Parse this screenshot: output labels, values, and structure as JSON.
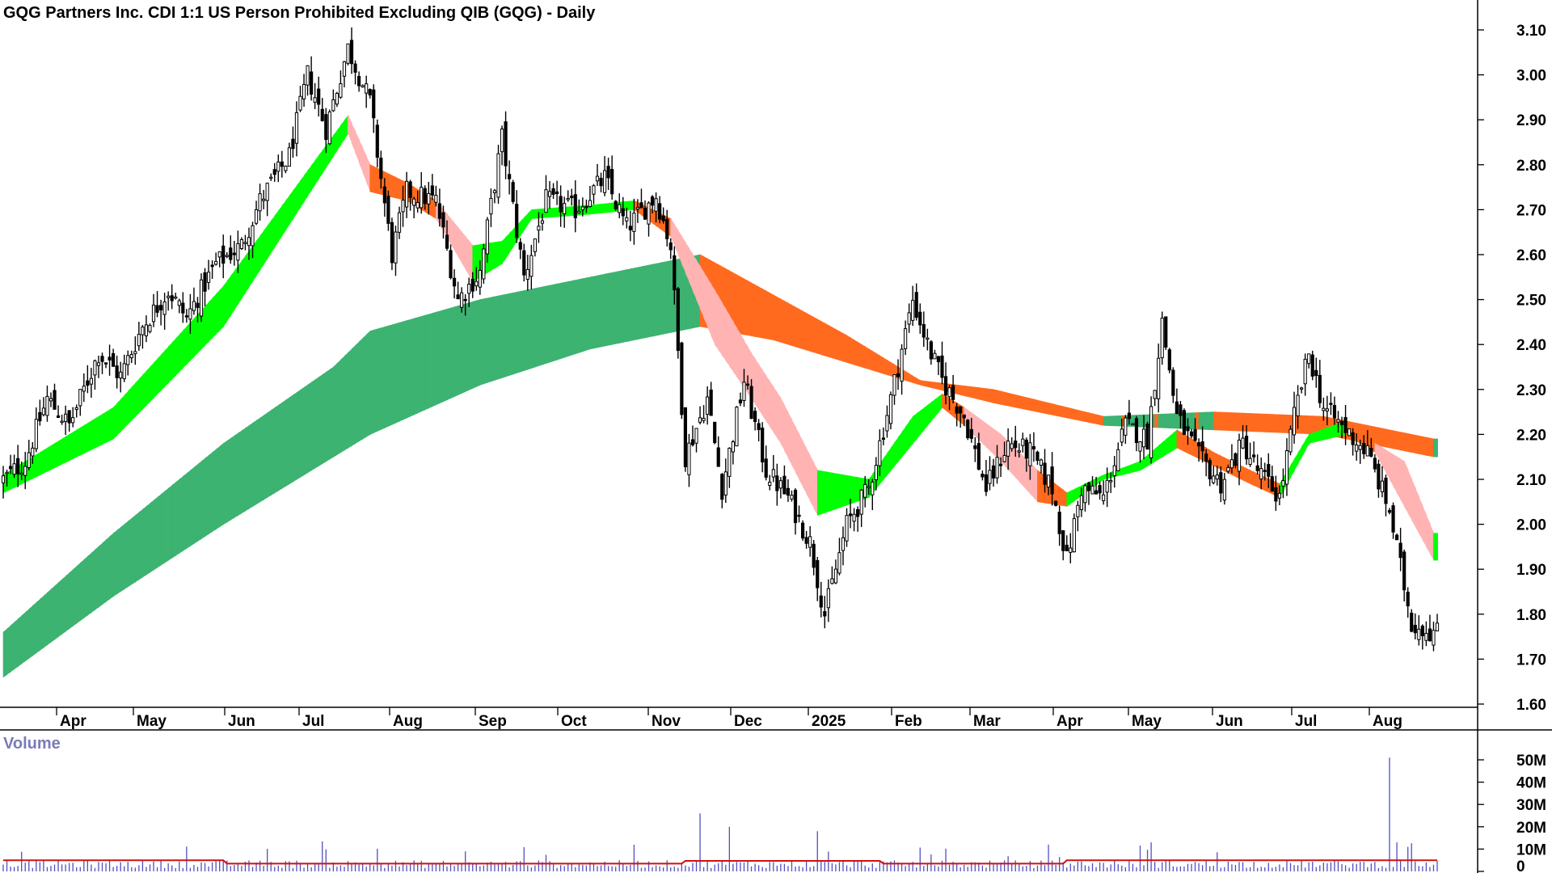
{
  "chart_data": {
    "type": "candlestick",
    "title": "GQG Partners Inc. CDI 1:1 US Person Prohibited Excluding QIB (GQG) - Daily",
    "y_ticks": [
      "3.10",
      "3.00",
      "2.90",
      "2.80",
      "2.70",
      "2.60",
      "2.50",
      "2.40",
      "2.30",
      "2.20",
      "2.10",
      "2.00",
      "1.90",
      "1.80",
      "1.70",
      "1.60"
    ],
    "ylim": [
      1.57,
      3.17
    ],
    "x_labels": [
      "Apr",
      "May",
      "Jun",
      "Jul",
      "Aug",
      "Sep",
      "Oct",
      "Nov",
      "Dec",
      "2025",
      "Feb",
      "Mar",
      "Apr",
      "May",
      "Jun",
      "Jul",
      "Aug"
    ],
    "price_anchors": [
      [
        0,
        2.1
      ],
      [
        6,
        2.14
      ],
      [
        12,
        2.28
      ],
      [
        18,
        2.22
      ],
      [
        26,
        2.38
      ],
      [
        32,
        2.33
      ],
      [
        38,
        2.44
      ],
      [
        45,
        2.52
      ],
      [
        50,
        2.46
      ],
      [
        58,
        2.58
      ],
      [
        65,
        2.62
      ],
      [
        70,
        2.72
      ],
      [
        78,
        2.82
      ],
      [
        83,
        3.0
      ],
      [
        88,
        2.88
      ],
      [
        94,
        3.06
      ],
      [
        100,
        2.94
      ],
      [
        106,
        2.6
      ],
      [
        110,
        2.74
      ],
      [
        118,
        2.72
      ],
      [
        124,
        2.5
      ],
      [
        130,
        2.56
      ],
      [
        136,
        2.86
      ],
      [
        142,
        2.55
      ],
      [
        148,
        2.72
      ],
      [
        156,
        2.7
      ],
      [
        164,
        2.77
      ],
      [
        170,
        2.66
      ],
      [
        178,
        2.73
      ],
      [
        182,
        2.62
      ],
      [
        186,
        2.15
      ],
      [
        192,
        2.28
      ],
      [
        196,
        2.08
      ],
      [
        202,
        2.32
      ],
      [
        208,
        2.12
      ],
      [
        214,
        2.06
      ],
      [
        220,
        1.96
      ],
      [
        224,
        1.8
      ],
      [
        230,
        2.0
      ],
      [
        236,
        2.08
      ],
      [
        242,
        2.28
      ],
      [
        248,
        2.5
      ],
      [
        252,
        2.4
      ],
      [
        256,
        2.32
      ],
      [
        262,
        2.24
      ],
      [
        268,
        2.08
      ],
      [
        274,
        2.18
      ],
      [
        280,
        2.16
      ],
      [
        286,
        2.08
      ],
      [
        290,
        1.92
      ],
      [
        294,
        2.08
      ],
      [
        300,
        2.06
      ],
      [
        306,
        2.22
      ],
      [
        312,
        2.19
      ],
      [
        316,
        2.45
      ],
      [
        320,
        2.24
      ],
      [
        326,
        2.15
      ],
      [
        332,
        2.09
      ],
      [
        338,
        2.18
      ],
      [
        342,
        2.12
      ],
      [
        348,
        2.06
      ],
      [
        352,
        2.24
      ],
      [
        356,
        2.38
      ],
      [
        360,
        2.26
      ],
      [
        366,
        2.21
      ],
      [
        372,
        2.16
      ],
      [
        378,
        2.03
      ],
      [
        384,
        1.78
      ],
      [
        390,
        1.76
      ]
    ],
    "ma_short_ribbon": {
      "upper": [
        [
          0,
          2.11
        ],
        [
          30,
          2.26
        ],
        [
          60,
          2.53
        ],
        [
          94,
          2.91
        ],
        [
          100,
          2.8
        ],
        [
          110,
          2.76
        ],
        [
          118,
          2.72
        ],
        [
          128,
          2.62
        ],
        [
          136,
          2.63
        ],
        [
          144,
          2.7
        ],
        [
          160,
          2.71
        ],
        [
          172,
          2.72
        ],
        [
          182,
          2.68
        ],
        [
          194,
          2.52
        ],
        [
          204,
          2.38
        ],
        [
          212,
          2.28
        ],
        [
          222,
          2.12
        ],
        [
          236,
          2.1
        ],
        [
          248,
          2.24
        ],
        [
          256,
          2.29
        ],
        [
          262,
          2.26
        ],
        [
          272,
          2.2
        ],
        [
          282,
          2.12
        ],
        [
          290,
          2.07
        ],
        [
          300,
          2.11
        ],
        [
          310,
          2.14
        ],
        [
          320,
          2.21
        ],
        [
          330,
          2.16
        ],
        [
          340,
          2.12
        ],
        [
          348,
          2.09
        ],
        [
          356,
          2.2
        ],
        [
          366,
          2.23
        ],
        [
          374,
          2.18
        ],
        [
          382,
          2.14
        ],
        [
          390,
          1.98
        ]
      ],
      "lower": [
        [
          0,
          2.07
        ],
        [
          30,
          2.19
        ],
        [
          60,
          2.44
        ],
        [
          94,
          2.87
        ],
        [
          100,
          2.74
        ],
        [
          110,
          2.72
        ],
        [
          118,
          2.68
        ],
        [
          128,
          2.54
        ],
        [
          136,
          2.58
        ],
        [
          144,
          2.68
        ],
        [
          160,
          2.69
        ],
        [
          172,
          2.7
        ],
        [
          182,
          2.64
        ],
        [
          194,
          2.4
        ],
        [
          204,
          2.28
        ],
        [
          212,
          2.18
        ],
        [
          222,
          2.02
        ],
        [
          236,
          2.06
        ],
        [
          248,
          2.18
        ],
        [
          256,
          2.26
        ],
        [
          262,
          2.22
        ],
        [
          272,
          2.14
        ],
        [
          282,
          2.05
        ],
        [
          290,
          2.04
        ],
        [
          300,
          2.1
        ],
        [
          310,
          2.12
        ],
        [
          320,
          2.17
        ],
        [
          330,
          2.13
        ],
        [
          340,
          2.09
        ],
        [
          348,
          2.06
        ],
        [
          356,
          2.18
        ],
        [
          366,
          2.2
        ],
        [
          374,
          2.16
        ],
        [
          382,
          2.04
        ],
        [
          390,
          1.92
        ]
      ]
    },
    "ma_long_ribbon": {
      "upper": [
        [
          0,
          1.76
        ],
        [
          30,
          1.98
        ],
        [
          60,
          2.18
        ],
        [
          90,
          2.35
        ],
        [
          100,
          2.43
        ],
        [
          130,
          2.5
        ],
        [
          160,
          2.55
        ],
        [
          190,
          2.6
        ],
        [
          210,
          2.51
        ],
        [
          230,
          2.42
        ],
        [
          250,
          2.32
        ],
        [
          270,
          2.3
        ],
        [
          300,
          2.24
        ],
        [
          330,
          2.25
        ],
        [
          360,
          2.24
        ],
        [
          390,
          2.19
        ]
      ],
      "lower": [
        [
          0,
          1.66
        ],
        [
          30,
          1.84
        ],
        [
          60,
          2.0
        ],
        [
          90,
          2.15
        ],
        [
          100,
          2.2
        ],
        [
          130,
          2.31
        ],
        [
          160,
          2.39
        ],
        [
          190,
          2.44
        ],
        [
          210,
          2.41
        ],
        [
          230,
          2.36
        ],
        [
          250,
          2.31
        ],
        [
          270,
          2.27
        ],
        [
          300,
          2.22
        ],
        [
          330,
          2.21
        ],
        [
          360,
          2.2
        ],
        [
          390,
          2.15
        ]
      ]
    },
    "volume": {
      "title": "Volume",
      "y_ticks": [
        "50M",
        "40M",
        "30M",
        "20M",
        "10M",
        "0"
      ],
      "ylim": [
        0,
        55
      ],
      "spikes": [
        [
          190,
          26
        ],
        [
          198,
          20
        ],
        [
          222,
          18
        ],
        [
          285,
          12
        ],
        [
          313,
          13
        ],
        [
          378,
          51
        ],
        [
          380,
          13
        ],
        [
          383,
          11
        ]
      ],
      "avg_level": 5
    },
    "colors": {
      "short_up": "#00ff00",
      "short_down": "#ff6a1f",
      "short_down_light": "#ffb3b3",
      "long_up": "#3cb371",
      "long_down": "#ff6a1f",
      "long_down_light": "#f07a7a",
      "volume_bar": "#5050c0",
      "volume_avg": "#d01010"
    }
  }
}
